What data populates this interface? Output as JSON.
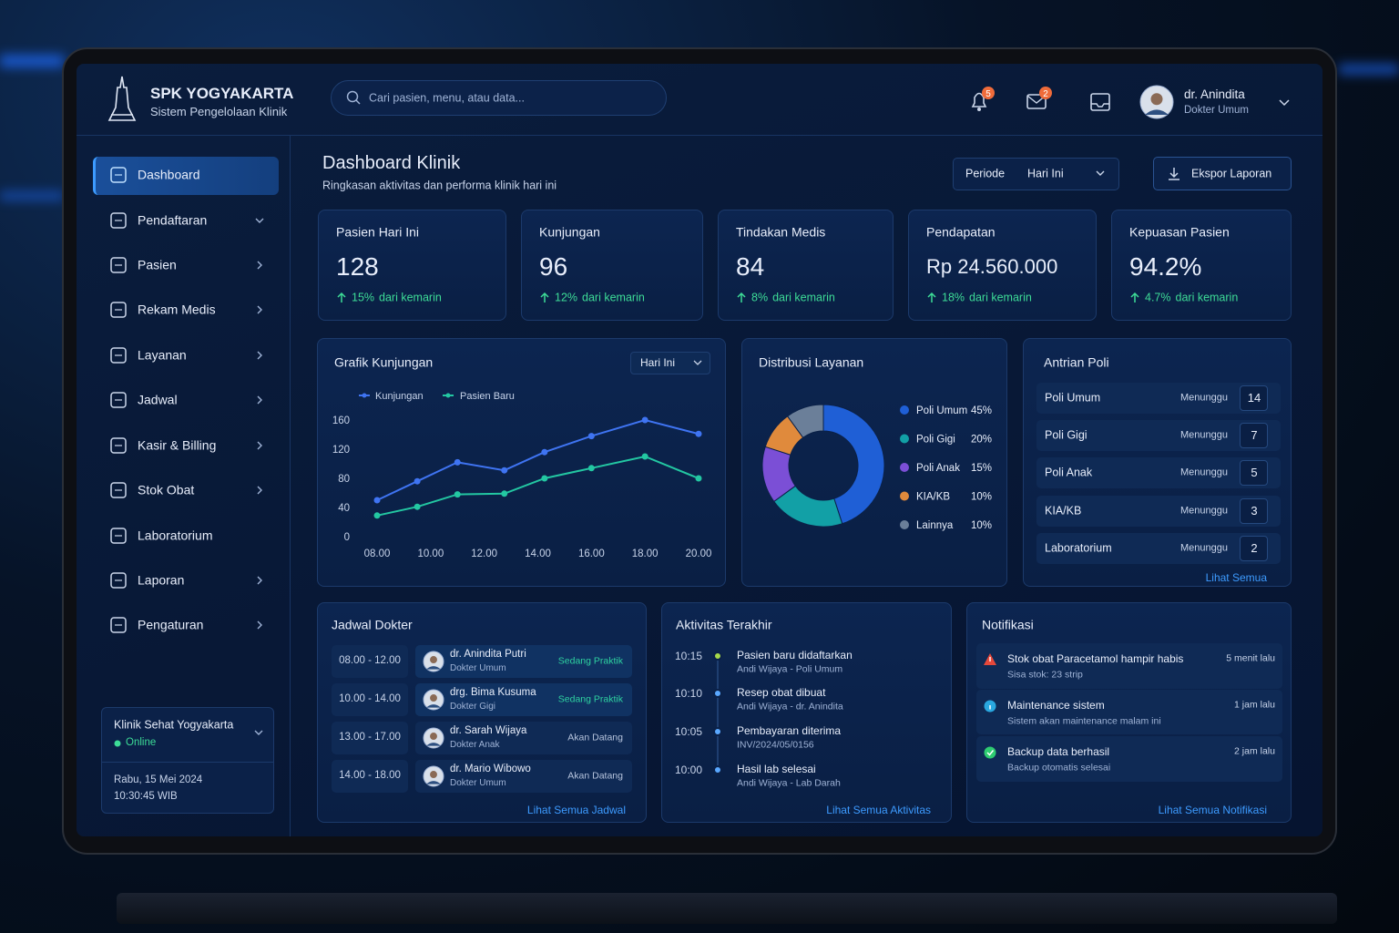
{
  "header": {
    "brand_title": "SPK YOGYAKARTA",
    "brand_subtitle": "Sistem Pengelolaan Klinik",
    "search_placeholder": "Cari pasien, menu, atau data...",
    "notification_count": 5,
    "message_count": 2,
    "user_name": "dr. Anindita",
    "user_role": "Dokter Umum"
  },
  "sidebar": {
    "menu": [
      "Dashboard",
      "Pendaftaran",
      "Pasien",
      "Rekam Medis",
      "Layanan",
      "Jadwal",
      "Kasir & Billing",
      "Stok Obat",
      "Laboratorium",
      "Laporan",
      "Pengaturan"
    ],
    "clinic_name": "Klinik Sehat Yogyakarta",
    "status": "Online",
    "date": "Rabu, 15 Mei 2024",
    "time": "10:30:45 WIB"
  },
  "page": {
    "title": "Dashboard Klinik",
    "subtitle": "Ringkasan aktivitas dan performa klinik hari ini",
    "period_label": "Periode",
    "period_value": "Hari Ini",
    "export_button": "Ekspor Laporan"
  },
  "stats": [
    {
      "label": "Pasien Hari Ini",
      "value": 128,
      "change": "15%",
      "change_text": "dari kemarin"
    },
    {
      "label": "Kunjungan",
      "value": 96,
      "change": "12%",
      "change_text": "dari kemarin"
    },
    {
      "label": "Tindakan Medis",
      "value": 84,
      "change": "8%",
      "change_text": "dari kemarin"
    },
    {
      "label": "Pendapatan",
      "value": "Rp 24.560.000",
      "change": "18%",
      "change_text": "dari kemarin"
    },
    {
      "label": "Kepuasan Pasien",
      "value": "94.2%",
      "change": "4.7%",
      "change_text": "dari kemarin"
    }
  ],
  "chart_data": [
    {
      "type": "line",
      "title": "Grafik Kunjungan",
      "filter": "Hari Ini",
      "x": [
        8,
        9.5,
        11,
        12.75,
        14.25,
        16,
        18,
        20
      ],
      "xlim": [
        8,
        20
      ],
      "xticks": [
        {
          "value": 8,
          "label": "08.00"
        },
        {
          "value": 10,
          "label": "10.00"
        },
        {
          "value": 12,
          "label": "12.00"
        },
        {
          "value": 14,
          "label": "14.00"
        },
        {
          "value": 16,
          "label": "16.00"
        },
        {
          "value": 18,
          "label": "18.00"
        },
        {
          "value": 20,
          "label": "20.00"
        }
      ],
      "ylim": [
        0,
        160
      ],
      "yticks": [
        0,
        40,
        80,
        120,
        160
      ],
      "grid": false,
      "series": [
        {
          "name": "Kunjungan",
          "color": "#3f74f2",
          "values": [
            50,
            76,
            102,
            91,
            116,
            138,
            160,
            141
          ]
        },
        {
          "name": "Pasien Baru",
          "color": "#23c7a2",
          "values": [
            29,
            41,
            58,
            59,
            80,
            94,
            110,
            80
          ]
        }
      ]
    },
    {
      "type": "pie",
      "title": "Distribusi Layanan",
      "donut": true,
      "categories": [
        "Poli Umum",
        "Poli Gigi",
        "Poli Anak",
        "KIA/KB",
        "Lainnya"
      ],
      "values": [
        45,
        20,
        15,
        10,
        10
      ],
      "value_labels": [
        "45%",
        "20%",
        "15%",
        "10%",
        "10%"
      ],
      "colors": [
        "#1f5fd6",
        "#12a0a6",
        "#7b4fd6",
        "#e08a3c",
        "#6b7f99"
      ]
    }
  ],
  "queue": {
    "title": "Antrian Poli",
    "rows": [
      {
        "name": "Poli Umum",
        "status": "Menunggu",
        "count": 14
      },
      {
        "name": "Poli Gigi",
        "status": "Menunggu",
        "count": 7
      },
      {
        "name": "Poli Anak",
        "status": "Menunggu",
        "count": 5
      },
      {
        "name": "KIA/KB",
        "status": "Menunggu",
        "count": 3
      },
      {
        "name": "Laboratorium",
        "status": "Menunggu",
        "count": 2
      }
    ],
    "link": "Lihat Semua"
  },
  "schedule": {
    "title": "Jadwal Dokter",
    "rows": [
      {
        "time": "08.00 - 12.00",
        "doctor": "dr. Anindita Putri",
        "role": "Dokter Umum",
        "status": "Sedang Praktik"
      },
      {
        "time": "10.00 - 14.00",
        "doctor": "drg. Bima Kusuma",
        "role": "Dokter Gigi",
        "status": "Sedang Praktik"
      },
      {
        "time": "13.00 - 17.00",
        "doctor": "dr. Sarah Wijaya",
        "role": "Dokter Anak",
        "status": "Akan Datang"
      },
      {
        "time": "14.00 - 18.00",
        "doctor": "dr. Mario Wibowo",
        "role": "Dokter Umum",
        "status": "Akan Datang"
      }
    ],
    "link": "Lihat Semua Jadwal"
  },
  "activity": {
    "title": "Aktivitas Terakhir",
    "rows": [
      {
        "time": "10:15",
        "title": "Pasien baru didaftarkan",
        "detail": "Andi Wijaya - Poli Umum"
      },
      {
        "time": "10:10",
        "title": "Resep obat dibuat",
        "detail": "Andi Wijaya - dr. Anindita"
      },
      {
        "time": "10:05",
        "title": "Pembayaran diterima",
        "detail": "INV/2024/05/0156"
      },
      {
        "time": "10:00",
        "title": "Hasil lab selesai",
        "detail": "Andi Wijaya - Lab Darah"
      }
    ],
    "link": "Lihat Semua Aktivitas"
  },
  "notifications": {
    "title": "Notifikasi",
    "rows": [
      {
        "title": "Stok obat Paracetamol hampir habis",
        "detail": "Sisa stok: 23 strip",
        "time": "5 menit lalu"
      },
      {
        "title": "Maintenance sistem",
        "detail": "Sistem akan maintenance malam ini",
        "time": "1 jam lalu"
      },
      {
        "title": "Backup data berhasil",
        "detail": "Backup otomatis selesai",
        "time": "2 jam lalu"
      }
    ],
    "link": "Lihat Semua Notifikasi"
  }
}
